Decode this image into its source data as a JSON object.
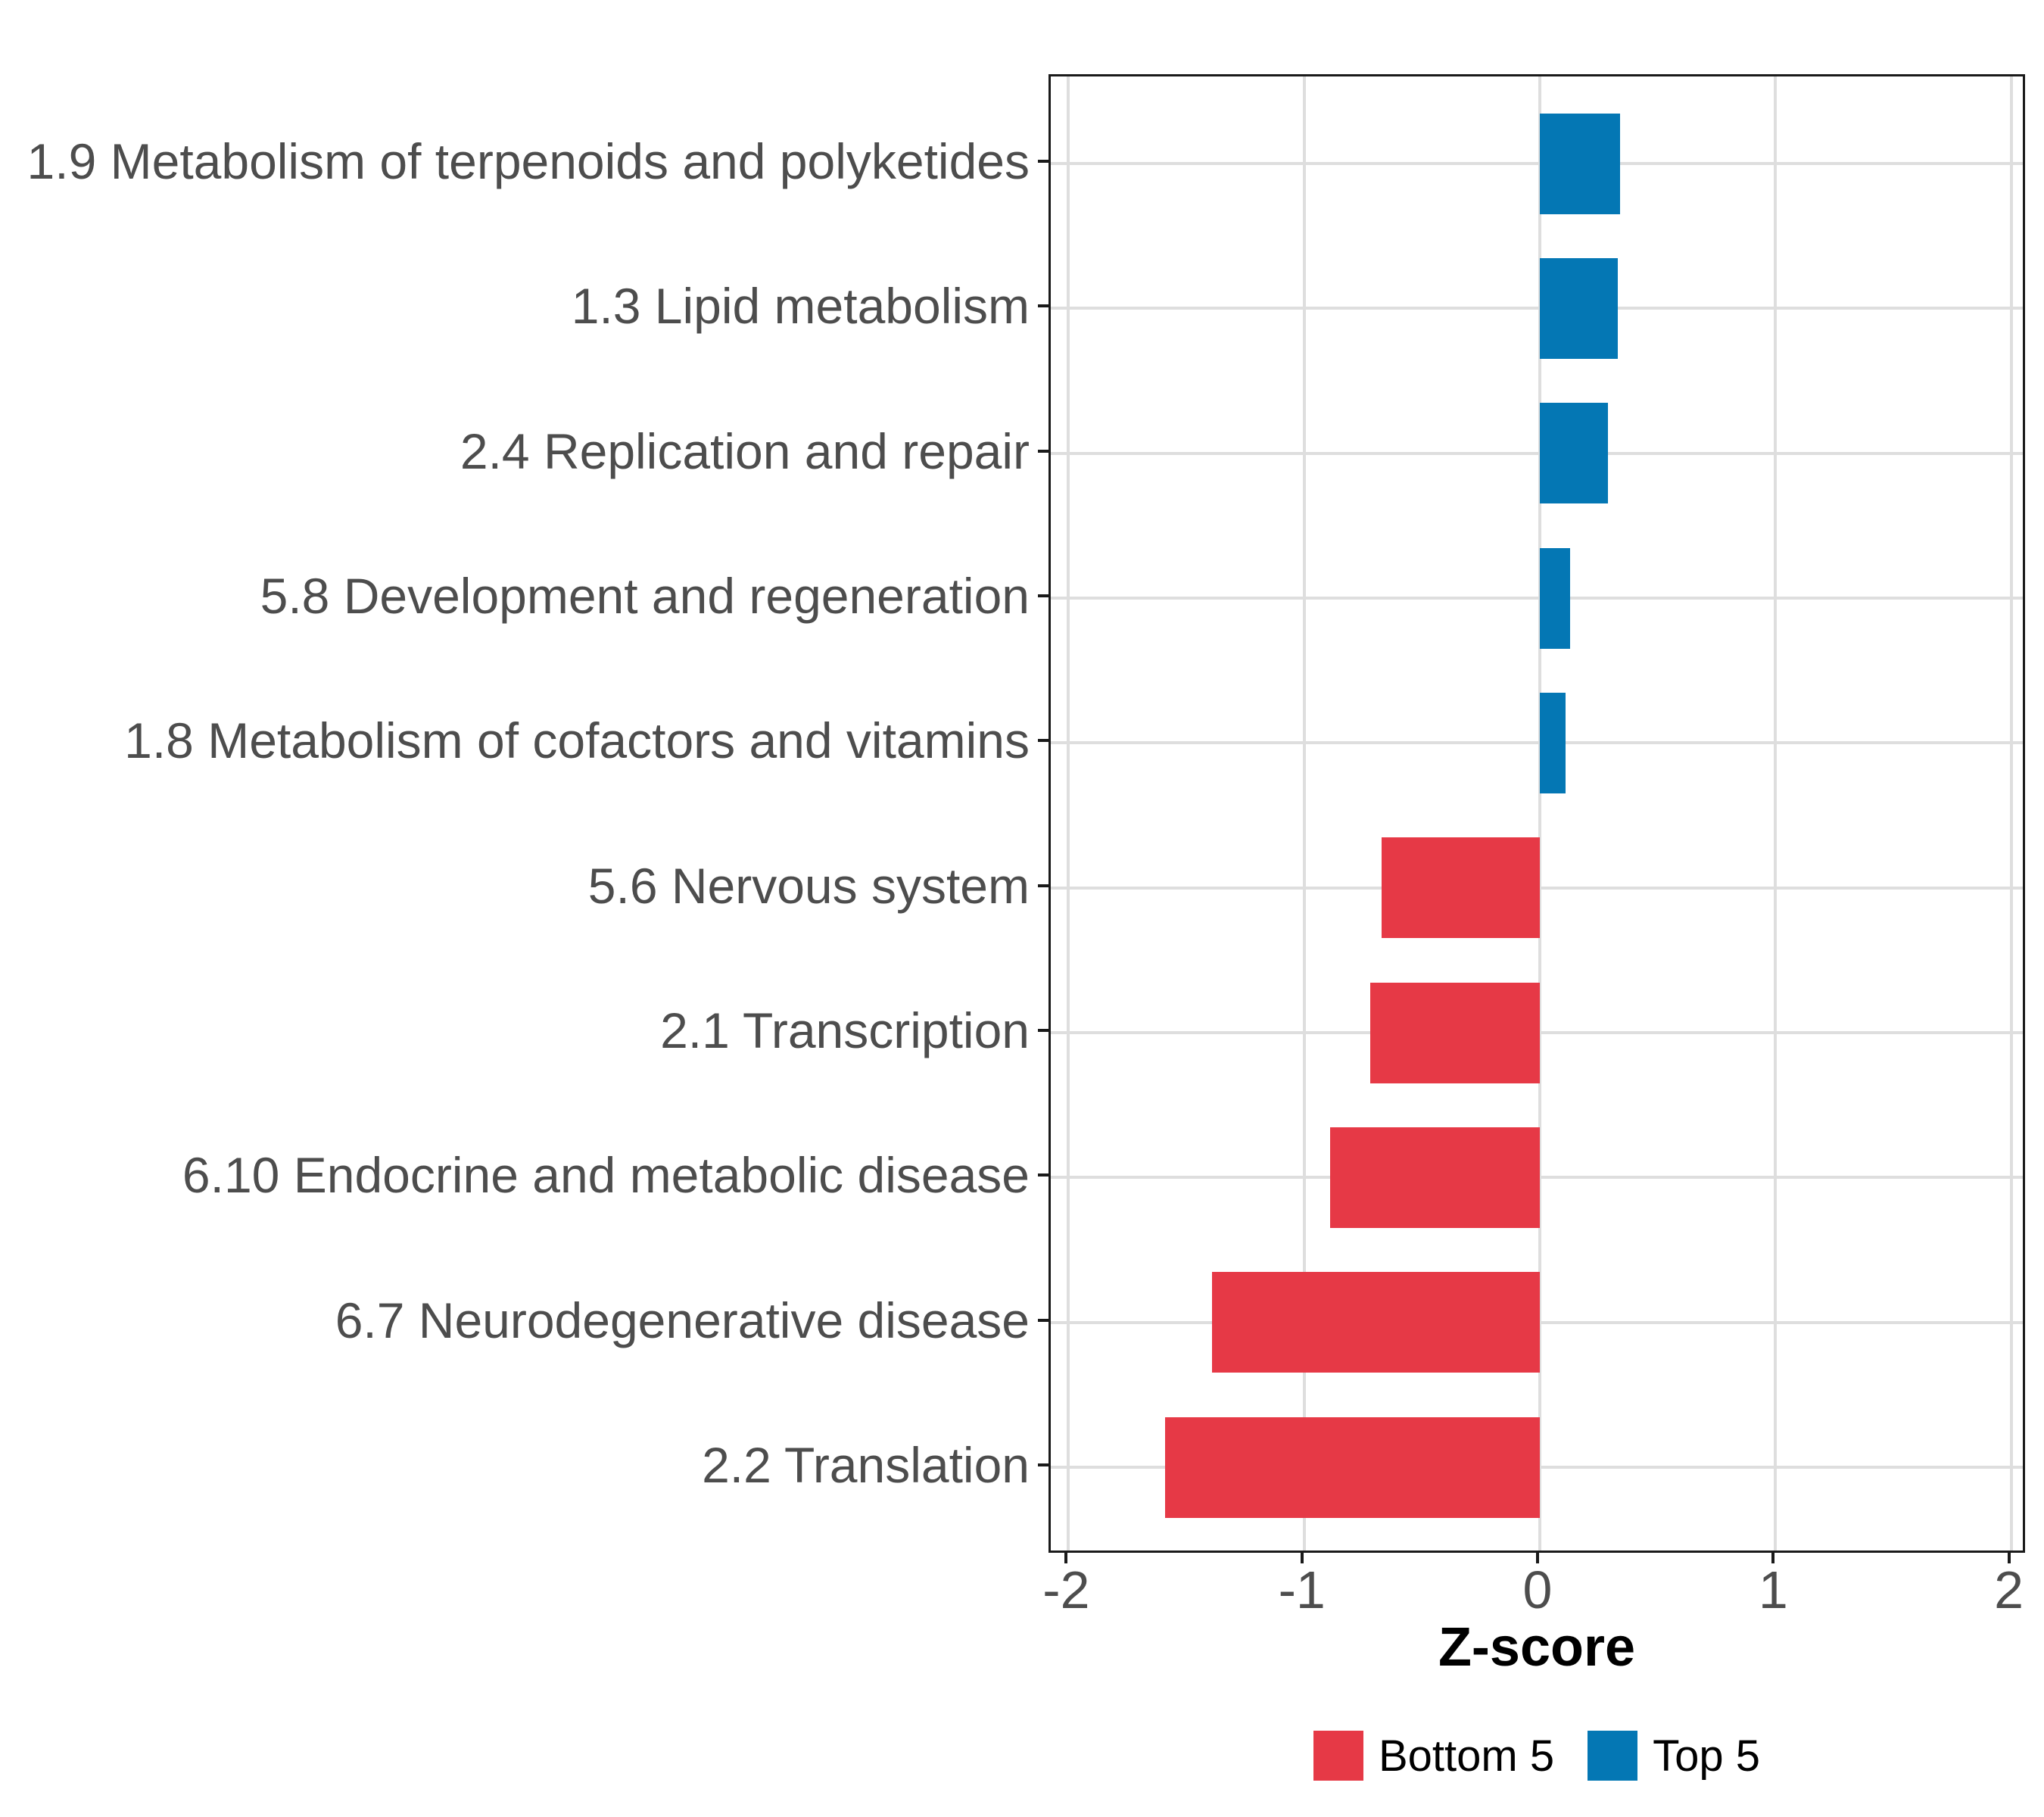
{
  "chart_data": {
    "type": "bar",
    "orientation": "horizontal",
    "title": "",
    "xlabel": "Z-score",
    "ylabel": "",
    "xlim": [
      -2,
      2
    ],
    "x_ticks": [
      "-2",
      "-1",
      "0",
      "1",
      "2"
    ],
    "x_tick_values": [
      -2,
      -1,
      0,
      1,
      2
    ],
    "grid": "major",
    "legend_position": "bottom",
    "categories": [
      "1.9 Metabolism of terpenoids and polyketides",
      "1.3 Lipid metabolism",
      "2.4 Replication and repair",
      "5.8 Development and regeneration",
      "1.8 Metabolism of cofactors and vitamins",
      "5.6 Nervous system",
      "2.1 Transcription",
      "6.10 Endocrine and metabolic disease",
      "6.7 Neurodegenerative disease",
      "2.2 Translation"
    ],
    "values": [
      0.34,
      0.33,
      0.29,
      0.13,
      0.11,
      -0.67,
      -0.72,
      -0.89,
      -1.39,
      -1.59
    ],
    "groups": [
      "Top 5",
      "Top 5",
      "Top 5",
      "Top 5",
      "Top 5",
      "Bottom 5",
      "Bottom 5",
      "Bottom 5",
      "Bottom 5",
      "Bottom 5"
    ],
    "legend": [
      {
        "label": "Bottom 5",
        "color": "#E63946"
      },
      {
        "label": "Top 5",
        "color": "#0477B4"
      }
    ],
    "colors": {
      "top5_bar": "#0477B4",
      "bottom5_bar": "#E63946",
      "gridline": "#DEDEDE",
      "panel_border": "#1A1A1A",
      "axis_text": "#4D4D4D",
      "title_text": "#000000"
    }
  }
}
